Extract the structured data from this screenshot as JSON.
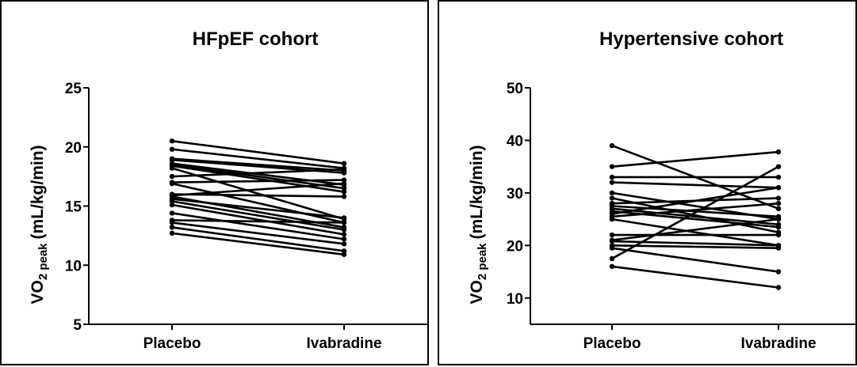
{
  "chart_data": [
    {
      "type": "line",
      "title": "HFpEF cohort",
      "ylabel": "VO",
      "ylabel_sub": "2 peak",
      "ylabel_unit": "(mL/kg/min)",
      "categories": [
        "Placebo",
        "Ivabradine"
      ],
      "ylim": [
        5,
        25
      ],
      "yticks": [
        5,
        10,
        15,
        20,
        25
      ],
      "grid": false,
      "pairs": [
        [
          20.5,
          18.6
        ],
        [
          19.8,
          18.2
        ],
        [
          19.0,
          18.0
        ],
        [
          18.9,
          17.8
        ],
        [
          18.6,
          16.8
        ],
        [
          18.5,
          16.5
        ],
        [
          18.4,
          16.2
        ],
        [
          18.2,
          13.9
        ],
        [
          17.5,
          18.1
        ],
        [
          17.0,
          17.2
        ],
        [
          16.9,
          13.6
        ],
        [
          16.0,
          15.8
        ],
        [
          15.9,
          16.9
        ],
        [
          15.8,
          13.2
        ],
        [
          15.6,
          14.0
        ],
        [
          15.4,
          13.0
        ],
        [
          15.1,
          12.6
        ],
        [
          14.4,
          12.2
        ],
        [
          13.8,
          13.6
        ],
        [
          13.6,
          11.8
        ],
        [
          13.2,
          11.2
        ],
        [
          12.7,
          10.9
        ]
      ]
    },
    {
      "type": "line",
      "title": "Hypertensive cohort",
      "ylabel": "VO",
      "ylabel_sub": "2 peak",
      "ylabel_unit": "(mL/kg/min)",
      "categories": [
        "Placebo",
        "Ivabradine"
      ],
      "ylim": [
        5,
        50
      ],
      "yticks": [
        10,
        20,
        30,
        40,
        50
      ],
      "grid": false,
      "pairs": [
        [
          39.0,
          27.0
        ],
        [
          35.0,
          37.8
        ],
        [
          33.0,
          33.0
        ],
        [
          32.0,
          31.0
        ],
        [
          30.0,
          25.0
        ],
        [
          29.0,
          22.5
        ],
        [
          28.0,
          29.0
        ],
        [
          27.5,
          25.5
        ],
        [
          27.0,
          24.0
        ],
        [
          26.5,
          23.5
        ],
        [
          26.0,
          31.0
        ],
        [
          25.5,
          28.0
        ],
        [
          25.0,
          20.0
        ],
        [
          22.0,
          22.0
        ],
        [
          21.0,
          25.0
        ],
        [
          20.8,
          20.0
        ],
        [
          20.0,
          19.5
        ],
        [
          19.5,
          15.0
        ],
        [
          17.5,
          35.0
        ],
        [
          16.0,
          12.0
        ]
      ]
    }
  ]
}
